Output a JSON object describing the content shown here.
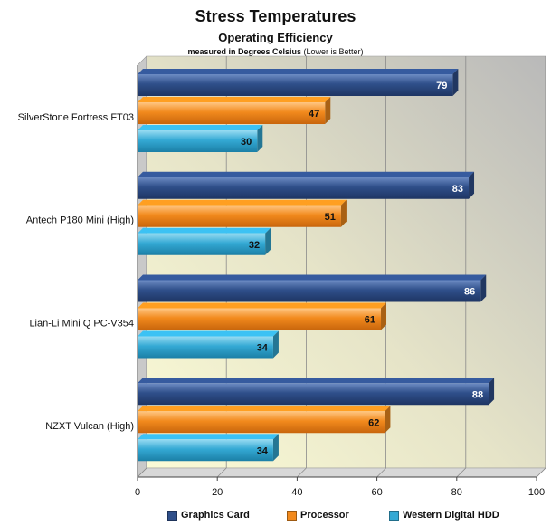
{
  "chart_data": {
    "type": "bar",
    "orientation": "horizontal",
    "title": "Stress Temperatures",
    "subtitle": "Operating Efficiency",
    "note_bold": "measured in Degrees Celsius",
    "note_regular": " (Lower is Better)",
    "categories": [
      "SilverStone Fortress FT03",
      "Antech P180 Mini (High)",
      "Lian-Li Mini Q PC-V354",
      "NZXT Vulcan (High)"
    ],
    "series": [
      {
        "name": "Graphics Card",
        "color": "#2f4f8a",
        "values": [
          79,
          83,
          86,
          88
        ]
      },
      {
        "name": "Processor",
        "color": "#f28a1d",
        "values": [
          47,
          51,
          61,
          62
        ]
      },
      {
        "name": "Western Digital HDD",
        "color": "#34a9d4",
        "values": [
          30,
          32,
          34,
          34
        ]
      }
    ],
    "xlim": [
      0,
      100
    ],
    "xticks": [
      0,
      20,
      40,
      60,
      80,
      100
    ],
    "grid": true,
    "legend_position": "bottom"
  }
}
